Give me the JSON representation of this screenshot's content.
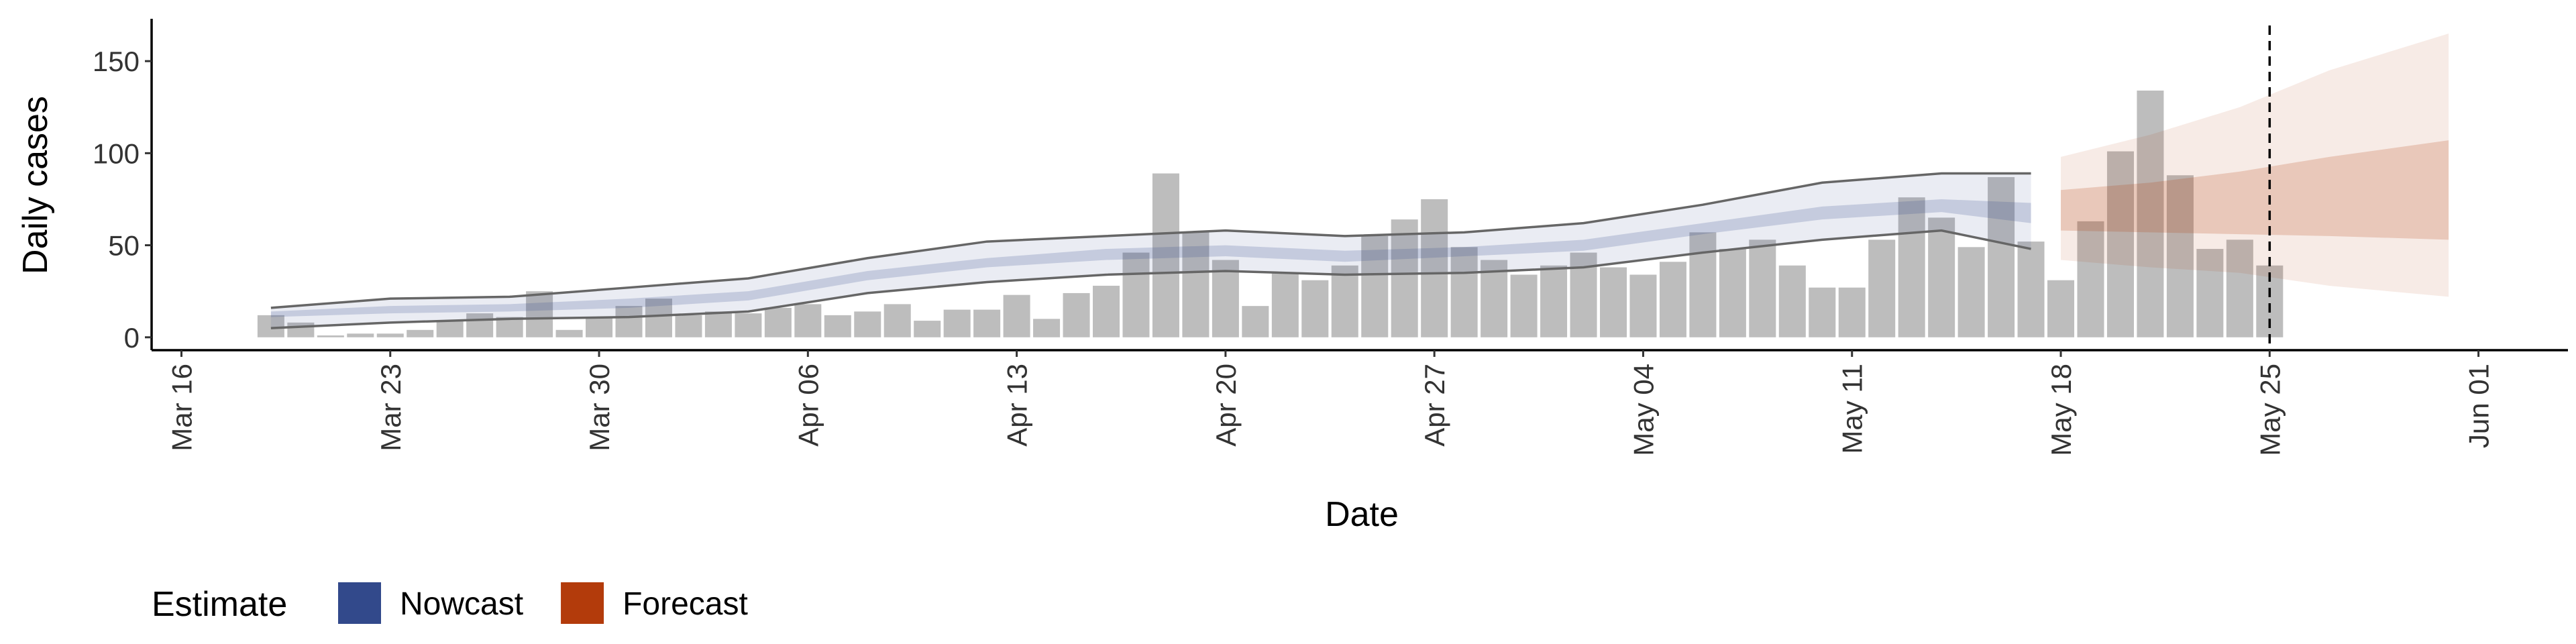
{
  "chart_data": {
    "type": "bar",
    "x_label": "Date",
    "y_label": "Daily cases",
    "bar_color": "#bdbdbd",
    "x": [
      "Mar 19",
      "Mar 20",
      "Mar 21",
      "Mar 22",
      "Mar 23",
      "Mar 24",
      "Mar 25",
      "Mar 26",
      "Mar 27",
      "Mar 28",
      "Mar 29",
      "Mar 30",
      "Mar 31",
      "Apr 01",
      "Apr 02",
      "Apr 03",
      "Apr 04",
      "Apr 05",
      "Apr 06",
      "Apr 07",
      "Apr 08",
      "Apr 09",
      "Apr 10",
      "Apr 11",
      "Apr 12",
      "Apr 13",
      "Apr 14",
      "Apr 15",
      "Apr 16",
      "Apr 17",
      "Apr 18",
      "Apr 19",
      "Apr 20",
      "Apr 21",
      "Apr 22",
      "Apr 23",
      "Apr 24",
      "Apr 25",
      "Apr 26",
      "Apr 27",
      "Apr 28",
      "Apr 29",
      "Apr 30",
      "May 01",
      "May 02",
      "May 03",
      "May 04",
      "May 05",
      "May 06",
      "May 07",
      "May 08",
      "May 09",
      "May 10",
      "May 11",
      "May 12",
      "May 13",
      "May 14",
      "May 15",
      "May 16",
      "May 17",
      "May 18",
      "May 19",
      "May 20",
      "May 21",
      "May 22",
      "May 23",
      "May 24",
      "May 25"
    ],
    "values": [
      12,
      8,
      1,
      2,
      2,
      4,
      9,
      13,
      11,
      25,
      4,
      11,
      17,
      21,
      12,
      14,
      13,
      16,
      18,
      12,
      14,
      18,
      9,
      15,
      15,
      23,
      10,
      24,
      28,
      46,
      89,
      57,
      42,
      17,
      35,
      31,
      39,
      55,
      64,
      75,
      49,
      42,
      34,
      39,
      46,
      38,
      34,
      41,
      57,
      48,
      53,
      39,
      27,
      27,
      53,
      76,
      65,
      49,
      87,
      52,
      31,
      63,
      101,
      134,
      88,
      48,
      53,
      39
    ],
    "ribbons": [
      {
        "name": "Nowcast",
        "color": "#32498b",
        "outline": true,
        "x": [
          "Mar 19",
          "Mar 23",
          "Mar 27",
          "Mar 31",
          "Apr 04",
          "Apr 08",
          "Apr 12",
          "Apr 16",
          "Apr 20",
          "Apr 24",
          "Apr 28",
          "May 02",
          "May 06",
          "May 10",
          "May 14",
          "May 17"
        ],
        "upper90": [
          16,
          21,
          22,
          27,
          32,
          43,
          52,
          55,
          58,
          55,
          57,
          62,
          72,
          84,
          89,
          89
        ],
        "lower90": [
          5,
          8,
          10,
          11,
          14,
          24,
          30,
          34,
          36,
          34,
          35,
          38,
          46,
          53,
          58,
          48
        ],
        "upper50": [
          14,
          17,
          18,
          21,
          25,
          36,
          43,
          48,
          50,
          47,
          49,
          53,
          62,
          71,
          75,
          73
        ],
        "lower50": [
          11,
          13,
          14,
          16,
          20,
          31,
          38,
          42,
          44,
          41,
          44,
          47,
          56,
          64,
          68,
          62
        ]
      },
      {
        "name": "Forecast",
        "color": "#b33b0b",
        "outline": false,
        "x": [
          "May 18",
          "May 21",
          "May 24",
          "May 27",
          "May 31"
        ],
        "upper90": [
          98,
          110,
          125,
          145,
          165
        ],
        "lower90": [
          42,
          38,
          35,
          28,
          22
        ],
        "upper50": [
          80,
          84,
          90,
          98,
          107
        ],
        "lower50": [
          58,
          57,
          56,
          55,
          53
        ]
      }
    ],
    "vline": "May 25",
    "legend_title": "Estimate",
    "xlim": [
      "Mar 15",
      "Jun 04"
    ],
    "xticks": [
      "Mar 16",
      "Mar 23",
      "Mar 30",
      "Apr 06",
      "Apr 13",
      "Apr 20",
      "Apr 27",
      "May 04",
      "May 11",
      "May 18",
      "May 25",
      "Jun 01"
    ],
    "ylim": [
      -7,
      173
    ],
    "yticks": [
      0,
      50,
      100,
      150
    ]
  }
}
